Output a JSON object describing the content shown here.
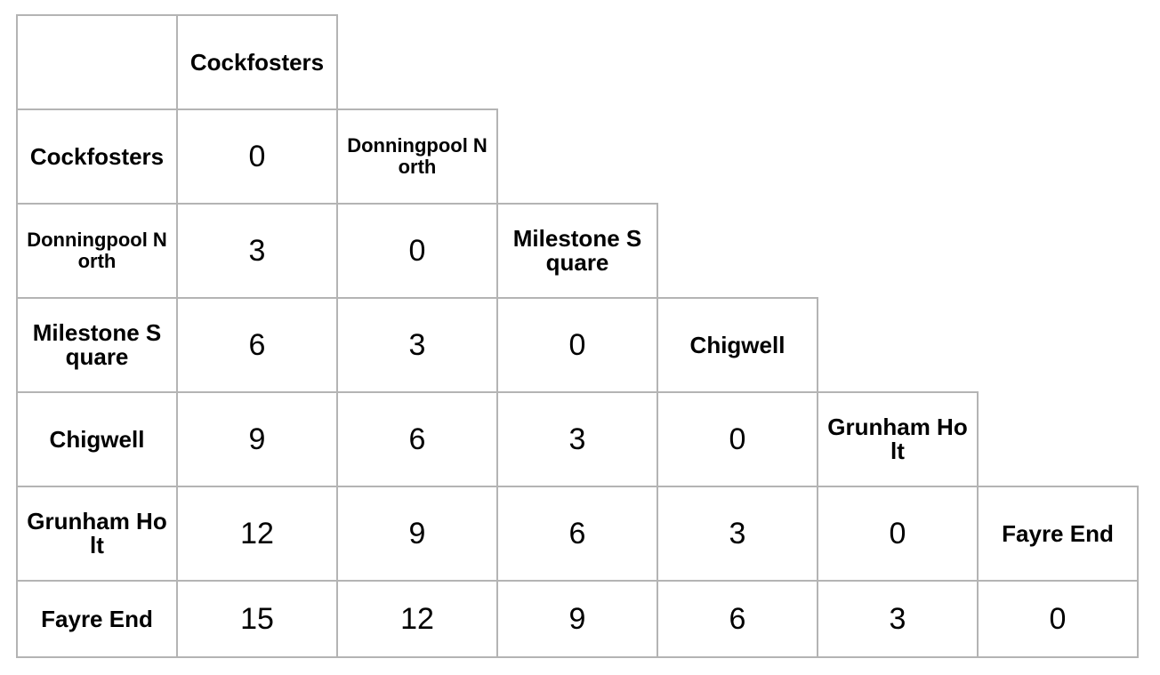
{
  "table": {
    "stations": [
      "Cockfosters",
      "Donningpool North",
      "Milestone Square",
      "Chigwell",
      "Grunham Holt",
      "Fayre End"
    ],
    "distances": [
      [
        0
      ],
      [
        3,
        0
      ],
      [
        6,
        3,
        0
      ],
      [
        9,
        6,
        3,
        0
      ],
      [
        12,
        9,
        6,
        3,
        0
      ],
      [
        15,
        12,
        9,
        6,
        3,
        0
      ]
    ]
  }
}
